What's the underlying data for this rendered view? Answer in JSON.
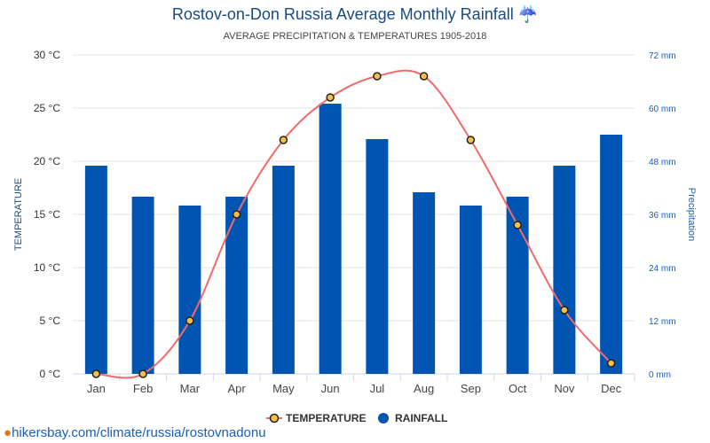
{
  "title": "Rostov-on-Don Russia Average Monthly Rainfall ☔",
  "subtitle": "AVERAGE PRECIPITATION & TEMPERATURES 1905-2018",
  "footer": "hikersbay.com/climate/russia/rostovnadonu",
  "colors": {
    "bar": "#0055b3",
    "line": "#f26a6a",
    "marker": "#f5c04a"
  },
  "chart_data": {
    "type": "bar",
    "categories": [
      "Jan",
      "Feb",
      "Mar",
      "Apr",
      "May",
      "Jun",
      "Jul",
      "Aug",
      "Sep",
      "Oct",
      "Nov",
      "Dec"
    ],
    "series": [
      {
        "name": "TEMPERATURE",
        "type": "line",
        "axis": "left",
        "values": [
          0,
          0,
          5,
          15,
          22,
          26,
          28,
          28,
          22,
          14,
          6,
          1
        ]
      },
      {
        "name": "RAINFALL",
        "type": "bar",
        "axis": "right",
        "values": [
          47,
          40,
          38,
          40,
          47,
          61,
          53,
          41,
          38,
          40,
          47,
          54
        ]
      }
    ],
    "ylabel": "TEMPERATURE",
    "y2label": "Precipitation",
    "ylim": [
      0,
      30
    ],
    "y2lim": [
      0,
      72
    ],
    "yticks": [
      "0 °C",
      "5 °C",
      "10 °C",
      "15 °C",
      "20 °C",
      "25 °C",
      "30 °C"
    ],
    "y2ticks": [
      "0 mm",
      "12 mm",
      "24 mm",
      "36 mm",
      "48 mm",
      "60 mm",
      "72 mm"
    ],
    "legend": [
      "TEMPERATURE",
      "RAINFALL"
    ],
    "legend_position": "bottom",
    "grid": true
  }
}
